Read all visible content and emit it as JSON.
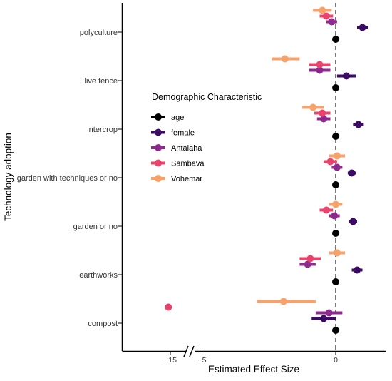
{
  "chart_data": {
    "type": "scatter",
    "subtype": "coefficient-plot-with-error-bars",
    "xlabel": "Estimated Effect Size",
    "ylabel": "Technology adoption",
    "x_axis_break": true,
    "x_ticks": [
      "−15",
      "−5",
      "0"
    ],
    "zero_reference_line": true,
    "grid": false,
    "legend": {
      "title": "Demographic Characteristic",
      "placement": "center"
    },
    "categories": [
      "polyculture",
      "live fence",
      "intercrop",
      "garden with techniques or no",
      "garden or no",
      "earthworks",
      "compost"
    ],
    "series": [
      {
        "name": "age",
        "color": "#000000",
        "values": [
          0,
          0,
          0,
          0,
          0,
          0,
          0
        ],
        "ci": [
          [
            0,
            0
          ],
          [
            0,
            0
          ],
          [
            0,
            0
          ],
          [
            0,
            0
          ],
          [
            0,
            0
          ],
          [
            0,
            0
          ],
          [
            0,
            0
          ]
        ]
      },
      {
        "name": "female",
        "color": "#3b0a63",
        "values": [
          1.0,
          0.4,
          0.85,
          0.6,
          0.65,
          0.8,
          -0.45
        ],
        "ci": [
          [
            0.8,
            1.2
          ],
          [
            0.05,
            0.75
          ],
          [
            0.65,
            1.05
          ],
          [
            0.45,
            0.75
          ],
          [
            0.5,
            0.8
          ],
          [
            0.6,
            1.0
          ],
          [
            -0.9,
            0.0
          ]
        ]
      },
      {
        "name": "Antalaha",
        "color": "#8e2a8d",
        "values": [
          -0.15,
          -0.6,
          -0.45,
          0.05,
          -0.05,
          -1.05,
          -0.25
        ],
        "ci": [
          [
            -0.35,
            0.05
          ],
          [
            -1.0,
            -0.2
          ],
          [
            -0.7,
            -0.2
          ],
          [
            -0.15,
            0.25
          ],
          [
            -0.25,
            0.15
          ],
          [
            -1.35,
            -0.75
          ],
          [
            -0.75,
            0.25
          ]
        ]
      },
      {
        "name": "Sambava",
        "color": "#e8436d",
        "values": [
          -0.35,
          -0.6,
          -0.5,
          -0.2,
          -0.35,
          -0.95,
          -15.6
        ],
        "ci": [
          [
            -0.6,
            -0.1
          ],
          [
            -1.0,
            -0.2
          ],
          [
            -0.8,
            -0.2
          ],
          [
            -0.45,
            0.05
          ],
          [
            -0.6,
            -0.1
          ],
          [
            -1.35,
            -0.55
          ],
          [
            -15.6,
            -15.6
          ]
        ]
      },
      {
        "name": "Vohemar",
        "color": "#f7a26b",
        "values": [
          -0.5,
          -1.9,
          -0.85,
          0.05,
          0.0,
          0.05,
          -1.95
        ],
        "ci": [
          [
            -0.85,
            -0.15
          ],
          [
            -2.4,
            -1.35
          ],
          [
            -1.25,
            -0.45
          ],
          [
            -0.25,
            0.35
          ],
          [
            -0.25,
            0.25
          ],
          [
            -0.25,
            0.35
          ],
          [
            -2.95,
            -0.75
          ]
        ]
      }
    ]
  }
}
